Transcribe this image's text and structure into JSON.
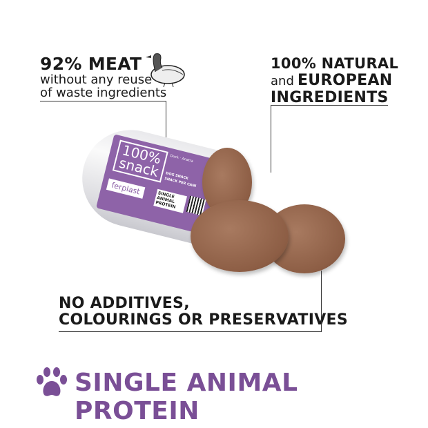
{
  "callouts": {
    "meat": {
      "title": "92% MEAT",
      "line1": "without any reuse",
      "line2": "of waste ingredients"
    },
    "natural": {
      "line1": "100% NATURAL",
      "line2_prefix": "and",
      "line2": "EUROPEAN",
      "line3": "INGREDIENTS"
    },
    "additives": {
      "line1": "NO ADDITIVES,",
      "line2": "COLOURINGS OR PRESERVATIVES"
    }
  },
  "package": {
    "brand_title_1": "100%",
    "brand_title_2": "snack",
    "flavors": "Duck · Anatra",
    "type": "DOG SNACK",
    "type_it": "SNACK PER CANI",
    "maker": "ferplast",
    "badge": "SINGLE ANIMAL PROTEIN"
  },
  "footer": {
    "title": "SINGLE ANIMAL PROTEIN",
    "icon": "paw-icon"
  },
  "colors": {
    "accent": "#7a4f96",
    "package": "#8e63a8",
    "meat": "#8d5e45"
  }
}
